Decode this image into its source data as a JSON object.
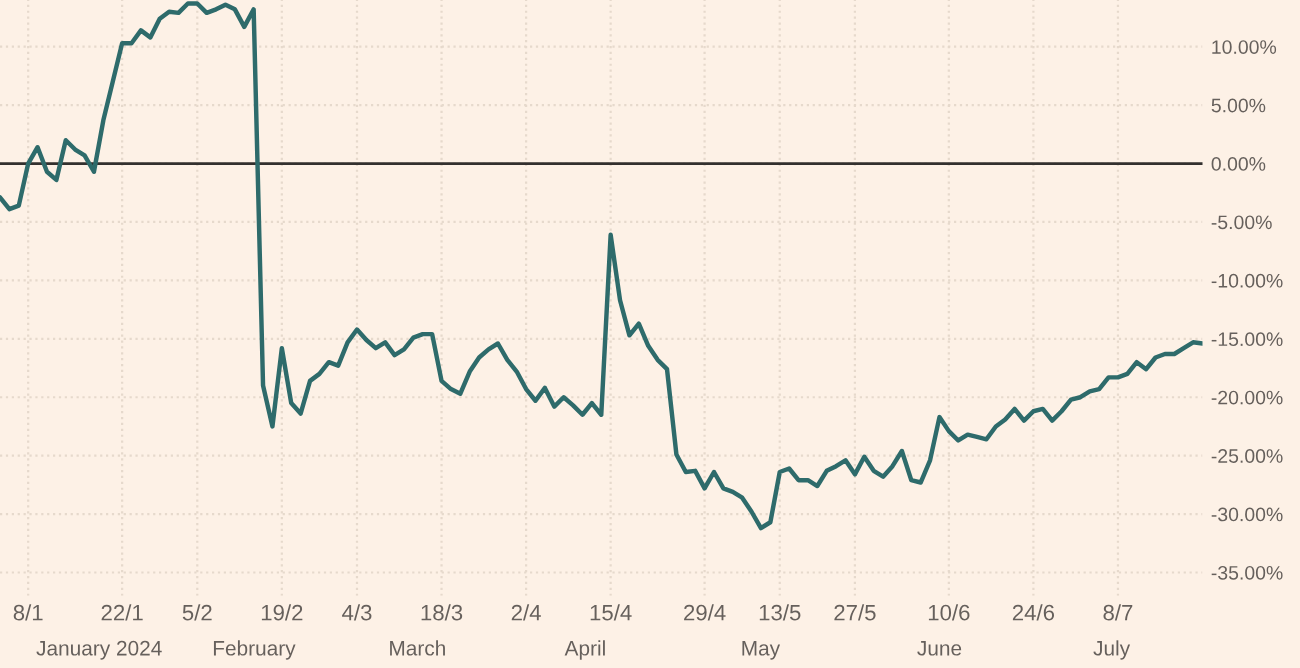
{
  "chart_data": {
    "type": "line",
    "categories": [
      null,
      null,
      null,
      "8/1",
      null,
      null,
      null,
      null,
      null,
      null,
      null,
      null,
      null,
      "22/1",
      null,
      null,
      null,
      null,
      null,
      null,
      null,
      "5/2",
      null,
      null,
      null,
      null,
      null,
      null,
      null,
      null,
      "19/2",
      null,
      null,
      null,
      null,
      null,
      null,
      null,
      "4/3",
      null,
      null,
      null,
      null,
      null,
      null,
      null,
      null,
      "18/3",
      null,
      null,
      null,
      null,
      null,
      null,
      null,
      null,
      "2/4",
      null,
      null,
      null,
      null,
      null,
      null,
      null,
      null,
      "15/4",
      null,
      null,
      null,
      null,
      null,
      null,
      null,
      null,
      null,
      "29/4",
      null,
      null,
      null,
      null,
      null,
      null,
      null,
      "13/5",
      null,
      null,
      null,
      null,
      null,
      null,
      null,
      "27/5",
      null,
      null,
      null,
      null,
      null,
      null,
      null,
      null,
      null,
      "10/6",
      null,
      null,
      null,
      null,
      null,
      null,
      null,
      null,
      "24/6",
      null,
      null,
      null,
      null,
      null,
      null,
      null,
      null,
      "8/7",
      null,
      null,
      null,
      null,
      null,
      null,
      null,
      null,
      null
    ],
    "series": [
      {
        "color": "#2e6b6b",
        "values": [
          -2.9,
          -3.9,
          -3.6,
          0,
          1.4,
          -0.7,
          -1.4,
          2.0,
          1.2,
          0.7,
          -0.7,
          3.7,
          7.0,
          10.3,
          10.3,
          11.4,
          10.8,
          12.4,
          13.0,
          12.9,
          13.7,
          13.7,
          12.9,
          13.2,
          13.6,
          13.2,
          11.7,
          13.2,
          -19.0,
          -22.5,
          -15.8,
          -20.5,
          -21.4,
          -18.6,
          -18.0,
          -17.0,
          -17.3,
          -15.3,
          -14.2,
          -15.1,
          -15.8,
          -15.3,
          -16.4,
          -15.9,
          -14.9,
          -14.6,
          -14.6,
          -18.6,
          -19.3,
          -19.7,
          -17.8,
          -16.6,
          -15.9,
          -15.4,
          -16.8,
          -17.8,
          -19.3,
          -20.3,
          -19.2,
          -20.8,
          -20.0,
          -20.7,
          -21.5,
          -20.5,
          -21.5,
          -6.1,
          -11.7,
          -14.7,
          -13.7,
          -15.6,
          -16.8,
          -17.6,
          -24.9,
          -26.4,
          -26.3,
          -27.8,
          -26.4,
          -27.8,
          -28.1,
          -28.6,
          -29.8,
          -31.2,
          -30.7,
          -26.4,
          -26.1,
          -27.1,
          -27.1,
          -27.6,
          -26.3,
          -25.9,
          -25.4,
          -26.6,
          -25.1,
          -26.3,
          -26.8,
          -25.9,
          -24.6,
          -27.1,
          -27.3,
          -25.4,
          -21.7,
          -22.9,
          -23.7,
          -23.2,
          -23.4,
          -23.6,
          -22.5,
          -21.9,
          -21.0,
          -22.0,
          -21.2,
          -21.0,
          -22.0,
          -21.2,
          -20.2,
          -20.0,
          -19.5,
          -19.3,
          -18.3,
          -18.3,
          -18.0,
          -17.0,
          -17.6,
          -16.6,
          -16.3,
          -16.3,
          -15.8,
          -15.3,
          -15.4
        ]
      }
    ],
    "ylim": [
      -37,
      14
    ],
    "yticks": [
      {
        "value": 10,
        "label": "10.00%"
      },
      {
        "value": 5,
        "label": "5.00%"
      },
      {
        "value": 0,
        "label": "0.00%"
      },
      {
        "value": -5,
        "label": "-5.00%"
      },
      {
        "value": -10,
        "label": "-10.00%"
      },
      {
        "value": -15,
        "label": "-15.00%"
      },
      {
        "value": -20,
        "label": "-20.00%"
      },
      {
        "value": -25,
        "label": "-25.00%"
      },
      {
        "value": -30,
        "label": "-30.00%"
      },
      {
        "value": -35,
        "label": "-35.00%"
      }
    ],
    "ref_lines": [
      {
        "axis": "y",
        "value": 0,
        "color": "#33302e"
      }
    ],
    "annotations": [
      "January 2024",
      "February",
      "March",
      "April",
      "May",
      "June",
      "July"
    ],
    "grid": true,
    "legend": false
  }
}
